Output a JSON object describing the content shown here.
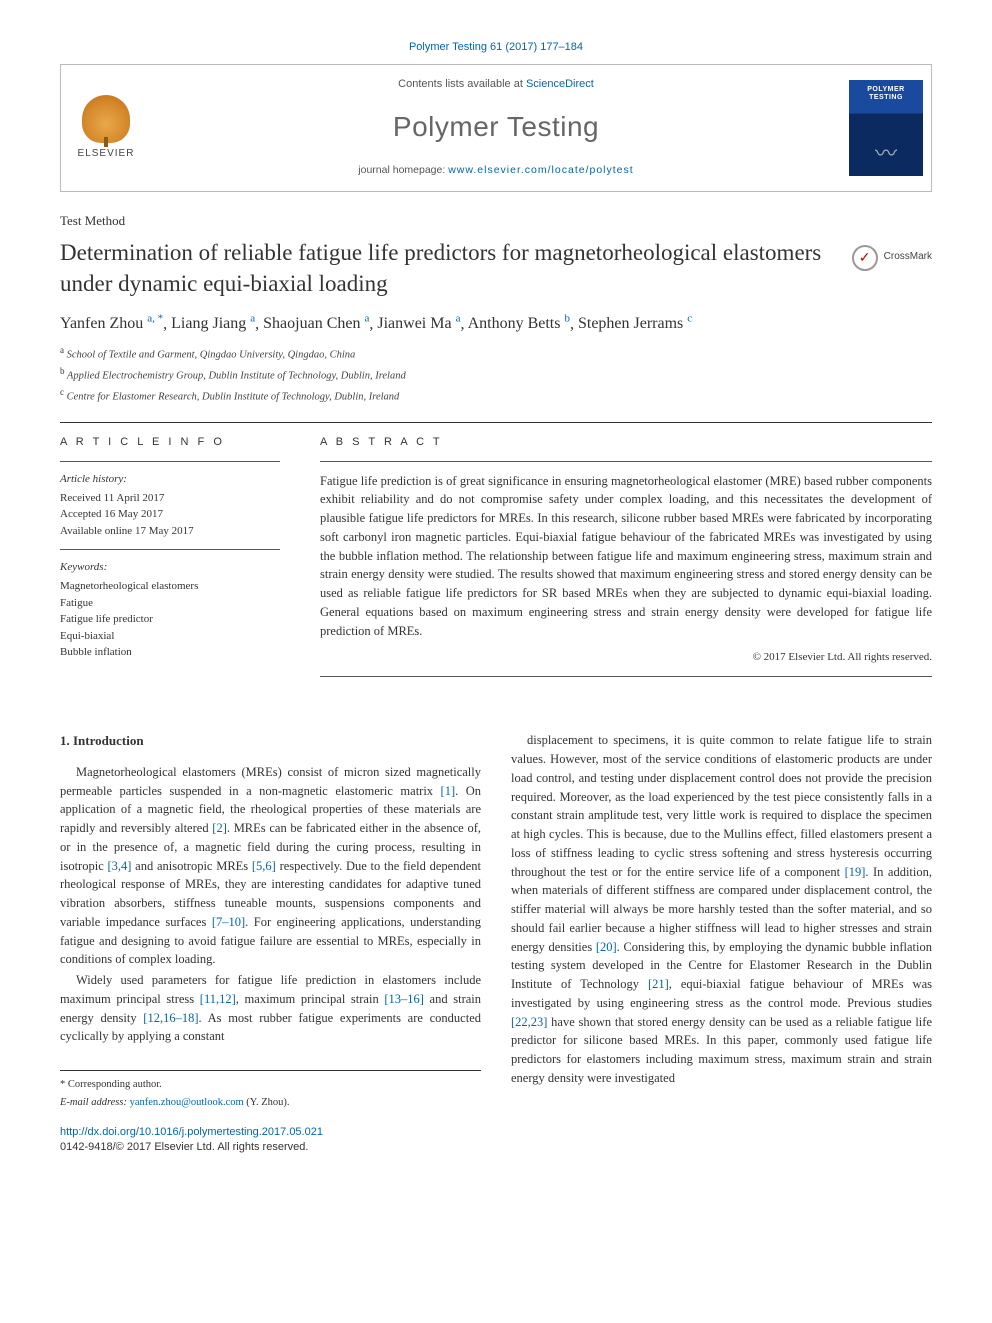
{
  "journal_ref": "Polymer Testing 61 (2017) 177–184",
  "header": {
    "publisher_name": "ELSEVIER",
    "contents_prefix": "Contents lists available at ",
    "contents_linktext": "ScienceDirect",
    "journal_name": "Polymer Testing",
    "homepage_prefix": "journal homepage: ",
    "homepage_url": "www.elsevier.com/locate/polytest",
    "cover_line1": "POLYMER",
    "cover_line2": "TESTING"
  },
  "section_label": "Test Method",
  "paper_title": "Determination of reliable fatigue life predictors for magnetorheological elastomers under dynamic equi-biaxial loading",
  "crossmark_label": "CrossMark",
  "authors_html": [
    {
      "name": "Yanfen Zhou",
      "sup": "a, *"
    },
    {
      "name": "Liang Jiang",
      "sup": "a"
    },
    {
      "name": "Shaojuan Chen",
      "sup": "a"
    },
    {
      "name": "Jianwei Ma",
      "sup": "a"
    },
    {
      "name": "Anthony Betts",
      "sup": "b"
    },
    {
      "name": "Stephen Jerrams",
      "sup": "c"
    }
  ],
  "affiliations": [
    {
      "sup": "a",
      "text": "School of Textile and Garment, Qingdao University, Qingdao, China"
    },
    {
      "sup": "b",
      "text": "Applied Electrochemistry Group, Dublin Institute of Technology, Dublin, Ireland"
    },
    {
      "sup": "c",
      "text": "Centre for Elastomer Research, Dublin Institute of Technology, Dublin, Ireland"
    }
  ],
  "article_info": {
    "head": "A R T I C L E   I N F O",
    "history_head": "Article history:",
    "history": [
      "Received 11 April 2017",
      "Accepted 16 May 2017",
      "Available online 17 May 2017"
    ],
    "keywords_head": "Keywords:",
    "keywords": [
      "Magnetorheological elastomers",
      "Fatigue",
      "Fatigue life predictor",
      "Equi-biaxial",
      "Bubble inflation"
    ]
  },
  "abstract": {
    "head": "A B S T R A C T",
    "text": "Fatigue life prediction is of great significance in ensuring magnetorheological elastomer (MRE) based rubber components exhibit reliability and do not compromise safety under complex loading, and this necessitates the development of plausible fatigue life predictors for MREs. In this research, silicone rubber based MREs were fabricated by incorporating soft carbonyl iron magnetic particles. Equi-biaxial fatigue behaviour of the fabricated MREs was investigated by using the bubble inflation method. The relationship between fatigue life and maximum engineering stress, maximum strain and strain energy density were studied. The results showed that maximum engineering stress and stored energy density can be used as reliable fatigue life predictors for SR based MREs when they are subjected to dynamic equi-biaxial loading. General equations based on maximum engineering stress and strain energy density were developed for fatigue life prediction of MREs.",
    "copyright": "© 2017 Elsevier Ltd. All rights reserved."
  },
  "body": {
    "heading": "1. Introduction",
    "col1": [
      "Magnetorheological elastomers (MREs) consist of micron sized magnetically permeable particles suspended in a non-magnetic elastomeric matrix [1]. On application of a magnetic field, the rheological properties of these materials are rapidly and reversibly altered [2]. MREs can be fabricated either in the absence of, or in the presence of, a magnetic field during the curing process, resulting in isotropic [3,4] and anisotropic MREs [5,6] respectively. Due to the field dependent rheological response of MREs, they are interesting candidates for adaptive tuned vibration absorbers, stiffness tuneable mounts, suspensions components and variable impedance surfaces [7–10]. For engineering applications, understanding fatigue and designing to avoid fatigue failure are essential to MREs, especially in conditions of complex loading.",
      "Widely used parameters for fatigue life prediction in elastomers include maximum principal stress [11,12], maximum principal strain [13–16] and strain energy density [12,16–18]. As most rubber fatigue experiments are conducted cyclically by applying a constant"
    ],
    "col2": [
      "displacement to specimens, it is quite common to relate fatigue life to strain values. However, most of the service conditions of elastomeric products are under load control, and testing under displacement control does not provide the precision required. Moreover, as the load experienced by the test piece consistently falls in a constant strain amplitude test, very little work is required to displace the specimen at high cycles. This is because, due to the Mullins effect, filled elastomers present a loss of stiffness leading to cyclic stress softening and stress hysteresis occurring throughout the test or for the entire service life of a component [19]. In addition, when materials of different stiffness are compared under displacement control, the stiffer material will always be more harshly tested than the softer material, and so should fail earlier because a higher stiffness will lead to higher stresses and strain energy densities [20]. Considering this, by employing the dynamic bubble inflation testing system developed in the Centre for Elastomer Research in the Dublin Institute of Technology [21], equi-biaxial fatigue behaviour of MREs was investigated by using engineering stress as the control mode. Previous studies [22,23] have shown that stored energy density can be used as a reliable fatigue life predictor for silicone based MREs. In this paper, commonly used fatigue life predictors for elastomers including maximum stress, maximum strain and strain energy density were investigated"
    ]
  },
  "footer": {
    "corr_label": "* Corresponding author.",
    "email_label": "E-mail address: ",
    "email": "yanfen.zhou@outlook.com",
    "email_owner": " (Y. Zhou).",
    "doi": "http://dx.doi.org/10.1016/j.polymertesting.2017.05.021",
    "issn_line": "0142-9418/© 2017 Elsevier Ltd. All rights reserved."
  },
  "colors": {
    "link": "#0066aa",
    "text": "#333333",
    "rule": "#333333",
    "cover_blue_top": "#1a4aa0",
    "cover_blue_bottom": "#0b2a60"
  }
}
